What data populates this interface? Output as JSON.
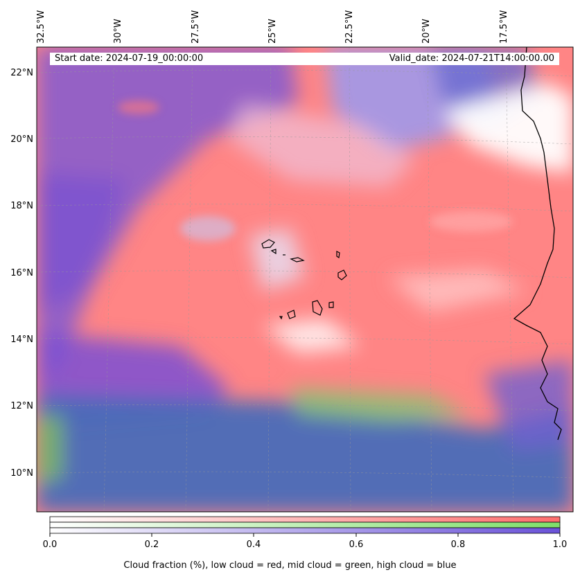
{
  "header": {
    "start_date": "Start date: 2024-07-19_00:00:00",
    "valid_date": "Valid_date: 2024-07-21T14:00:00.00"
  },
  "axes": {
    "longitude_labels": [
      "32.5°W",
      "30°W",
      "27.5°W",
      "25°W",
      "22.5°W",
      "20°W",
      "17.5°W"
    ],
    "latitude_labels": [
      "22°N",
      "20°N",
      "18°N",
      "16°N",
      "14°N",
      "12°N",
      "10°N"
    ]
  },
  "colorbar": {
    "ticks": [
      "0.0",
      "0.2",
      "0.4",
      "0.6",
      "0.8",
      "1.0"
    ],
    "label": "Cloud fraction (%), low cloud = red, mid cloud = green, high cloud = blue",
    "colors": {
      "low": "#ff7070",
      "mid": "#80e070",
      "high": "#6a5acd"
    }
  },
  "map_colors": {
    "low": "#ff8a8a",
    "high": "#7b4fd6",
    "mid": "#3f6fb3",
    "clear": "#ffffff",
    "coast": "#000000"
  }
}
